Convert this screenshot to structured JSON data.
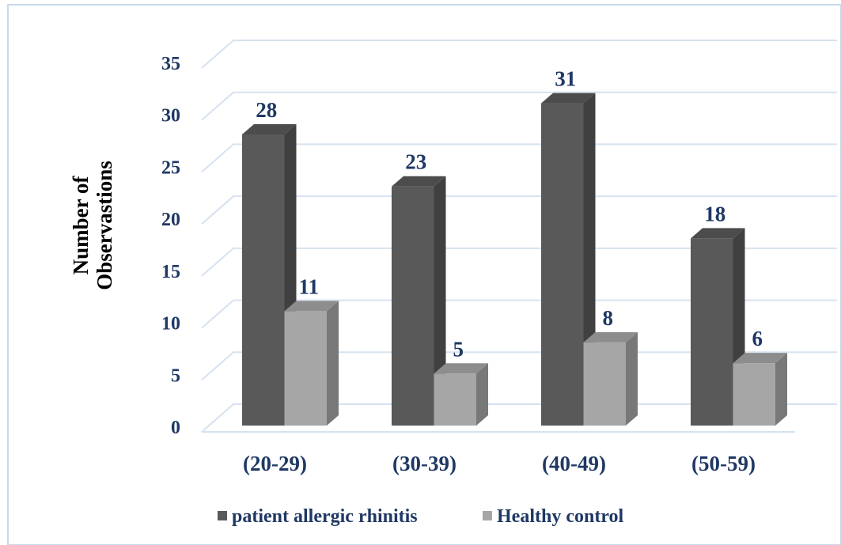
{
  "chart_data": {
    "type": "bar3d",
    "y_label": "Number of Observastions",
    "categories": [
      "(20-29)",
      "(30-39)",
      "(40-49)",
      "(50-59)"
    ],
    "series": [
      {
        "name": "patient allergic rhinitis",
        "color": "#595959",
        "values": [
          28,
          23,
          31,
          18
        ]
      },
      {
        "name": "Healthy control",
        "color": "#a6a6a6",
        "values": [
          11,
          5,
          8,
          6
        ]
      }
    ],
    "ylim": [
      0,
      35
    ],
    "yticks": [
      0,
      5,
      10,
      15,
      20,
      25,
      30,
      35
    ],
    "grid": true,
    "legend": "bottom"
  }
}
